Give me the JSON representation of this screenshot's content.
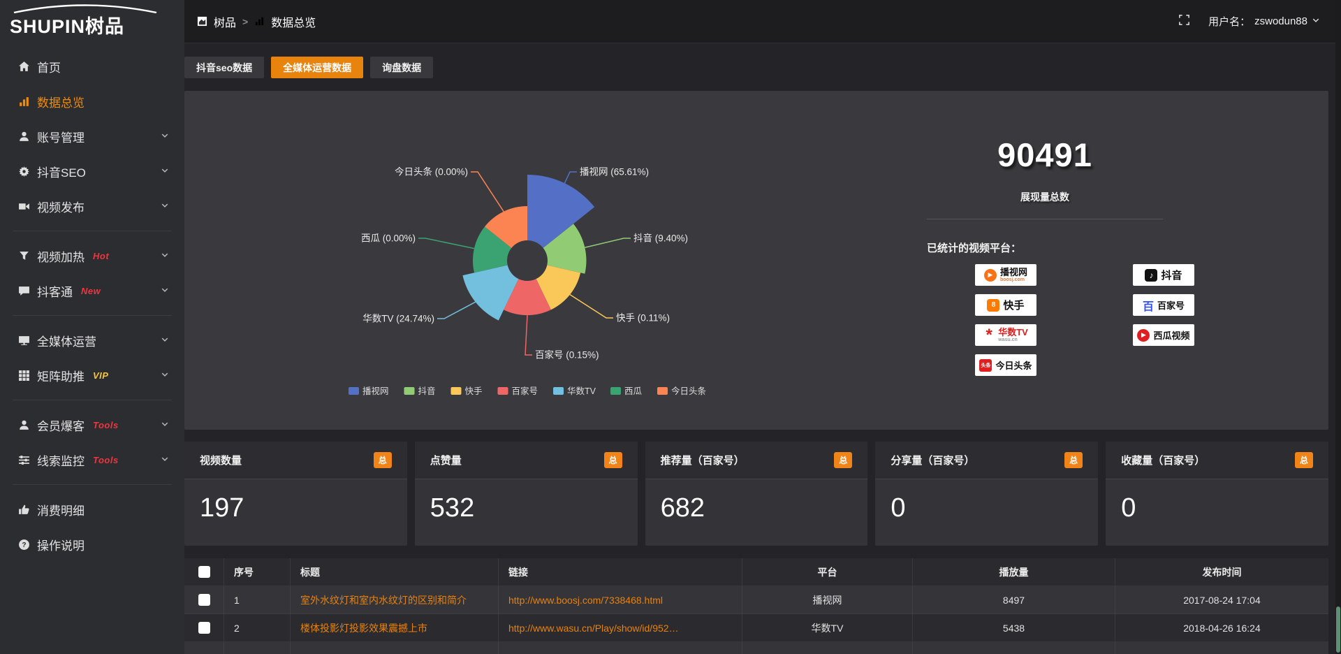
{
  "app": {
    "logo_text": "SHUPIN树品",
    "accent_color": "#ee8218"
  },
  "header": {
    "breadcrumb": [
      {
        "label": "树品",
        "icon": "dash"
      },
      {
        "label": "数据总览",
        "icon": "chart"
      }
    ],
    "separator": ">",
    "user_label": "用户名：",
    "username": "zswodun88"
  },
  "sidebar": {
    "items": [
      {
        "icon": "home",
        "label": "首页"
      },
      {
        "icon": "chart",
        "label": "数据总览",
        "active": true
      },
      {
        "icon": "user",
        "label": "账号管理",
        "chevron": true
      },
      {
        "icon": "gear",
        "label": "抖音SEO",
        "chevron": true
      },
      {
        "icon": "video",
        "label": "视频发布",
        "chevron": true
      },
      {
        "icon": "funnel",
        "label": "视频加热",
        "badge": "Hot",
        "badge_color": "#f0353f",
        "chevron": true
      },
      {
        "icon": "comment",
        "label": "抖客通",
        "badge": "New",
        "badge_color": "#f0353f",
        "chevron": true
      },
      {
        "icon": "monitor",
        "label": "全媒体运营",
        "chevron": true
      },
      {
        "icon": "grid",
        "label": "矩阵助推",
        "badge": "VIP",
        "badge_color": "#f5c542",
        "chevron": true
      },
      {
        "icon": "user",
        "label": "会员爆客",
        "badge": "Tools",
        "badge_color": "#f0353f",
        "chevron": true
      },
      {
        "icon": "sliders",
        "label": "线索监控",
        "badge": "Tools",
        "badge_color": "#f0353f",
        "chevron": true
      },
      {
        "icon": "thumb",
        "label": "消费明细"
      },
      {
        "icon": "question",
        "label": "操作说明"
      }
    ]
  },
  "tabs": [
    {
      "label": "抖音seo数据",
      "active": false
    },
    {
      "label": "全媒体运营数据",
      "active": true
    },
    {
      "label": "询盘数据",
      "active": false
    }
  ],
  "chart_data": {
    "type": "pie",
    "style": "rose",
    "label_format": "{name} ({pct}%)",
    "legend_position": "bottom",
    "items": [
      {
        "name": "播视网",
        "pct": 65.61,
        "color": "#5470c6"
      },
      {
        "name": "抖音",
        "pct": 9.4,
        "color": "#91cc75"
      },
      {
        "name": "快手",
        "pct": 0.11,
        "color": "#fac858"
      },
      {
        "name": "百家号",
        "pct": 0.15,
        "color": "#ee6666"
      },
      {
        "name": "华数TV",
        "pct": 24.74,
        "color": "#73c0de"
      },
      {
        "name": "西瓜",
        "pct": 0.0,
        "color": "#3ba272"
      },
      {
        "name": "今日头条",
        "pct": 0.0,
        "color": "#fc8452"
      }
    ]
  },
  "summary": {
    "total_value": "90491",
    "total_label": "展现量总数",
    "platforms_label": "已统计的视频平台：",
    "platform_badges": [
      {
        "name": "播视网",
        "sub": "boosj.com",
        "sub_color": "#f97316"
      },
      {
        "name": "快手",
        "sub": ""
      },
      {
        "name": "华数TV",
        "sub": "wasu.cn",
        "sub_color": "#999999"
      },
      {
        "name": "今日头条",
        "sub": "",
        "icon_text": "头条"
      },
      {
        "name": "抖音",
        "sub": ""
      },
      {
        "name": "百家号",
        "sub": ""
      },
      {
        "name": "西瓜视频",
        "sub": ""
      }
    ]
  },
  "stat_cards": [
    {
      "title": "视频数量",
      "badge": "总",
      "value": "197"
    },
    {
      "title": "点赞量",
      "badge": "总",
      "value": "532"
    },
    {
      "title": "推荐量（百家号）",
      "badge": "总",
      "value": "682"
    },
    {
      "title": "分享量（百家号）",
      "badge": "总",
      "value": "0"
    },
    {
      "title": "收藏量（百家号）",
      "badge": "总",
      "value": "0"
    }
  ],
  "table": {
    "headers": {
      "no": "序号",
      "title": "标题",
      "link": "链接",
      "platform": "平台",
      "plays": "播放量",
      "time": "发布时间"
    },
    "rows": [
      {
        "no": "1",
        "title": "室外水纹灯和室内水纹灯的区别和简介",
        "link": "http://www.boosj.com/7338468.html",
        "platform": "播视网",
        "plays": "8497",
        "time": "2017-08-24 17:04"
      },
      {
        "no": "2",
        "title": "楼体投影灯投影效果震撼上市",
        "link": "http://www.wasu.cn/Play/show/id/952…",
        "platform": "华数TV",
        "plays": "5438",
        "time": "2018-04-26 16:24"
      }
    ]
  }
}
